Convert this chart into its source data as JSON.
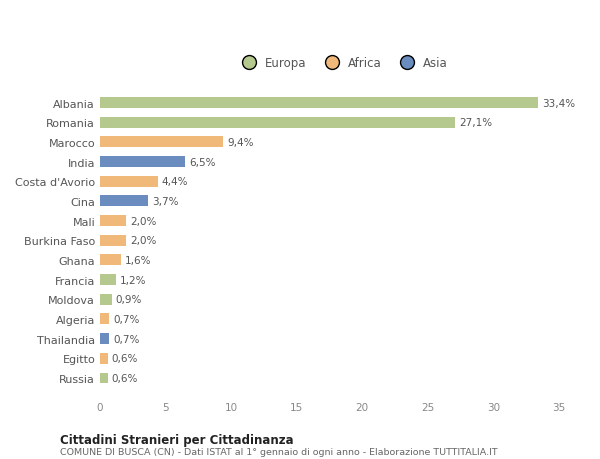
{
  "countries": [
    "Albania",
    "Romania",
    "Marocco",
    "India",
    "Costa d'Avorio",
    "Cina",
    "Mali",
    "Burkina Faso",
    "Ghana",
    "Francia",
    "Moldova",
    "Algeria",
    "Thailandia",
    "Egitto",
    "Russia"
  ],
  "values": [
    33.4,
    27.1,
    9.4,
    6.5,
    4.4,
    3.7,
    2.0,
    2.0,
    1.6,
    1.2,
    0.9,
    0.7,
    0.7,
    0.6,
    0.6
  ],
  "labels": [
    "33,4%",
    "27,1%",
    "9,4%",
    "6,5%",
    "4,4%",
    "3,7%",
    "2,0%",
    "2,0%",
    "1,6%",
    "1,2%",
    "0,9%",
    "0,7%",
    "0,7%",
    "0,6%",
    "0,6%"
  ],
  "continents": [
    "Europa",
    "Europa",
    "Africa",
    "Asia",
    "Africa",
    "Asia",
    "Africa",
    "Africa",
    "Africa",
    "Europa",
    "Europa",
    "Africa",
    "Asia",
    "Africa",
    "Europa"
  ],
  "colors": {
    "Europa": "#b5c98e",
    "Africa": "#f0b97a",
    "Asia": "#6b8cbf"
  },
  "background_color": "#ffffff",
  "plot_bg_color": "#f9f9f9",
  "title": "Cittadini Stranieri per Cittadinanza",
  "subtitle": "COMUNE DI BUSCA (CN) - Dati ISTAT al 1° gennaio di ogni anno - Elaborazione TUTTITALIA.IT",
  "xlim": [
    0,
    37
  ],
  "xticks": [
    0,
    5,
    10,
    15,
    20,
    25,
    30,
    35
  ]
}
